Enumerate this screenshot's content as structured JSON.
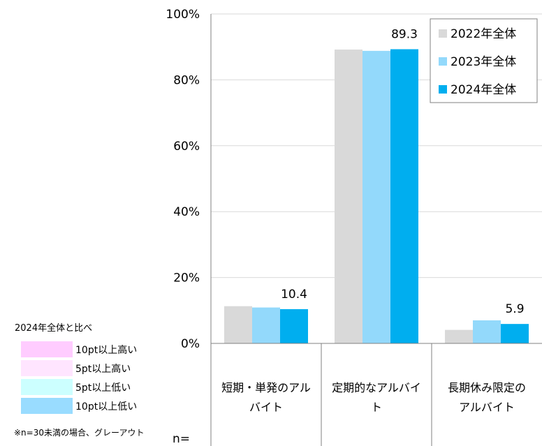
{
  "chart_data": {
    "type": "bar",
    "y_ticks": [
      "0%",
      "20%",
      "40%",
      "60%",
      "80%",
      "100%"
    ],
    "ylim": [
      0,
      100
    ],
    "categories": [
      [
        "短期・単発のアル",
        "バイト"
      ],
      [
        "定期的なアルバイ",
        "ト"
      ],
      [
        "長期休み限定の",
        "アルバイト"
      ]
    ],
    "series": [
      {
        "name": "2022年全体",
        "color": "#d9d9d9",
        "values": [
          11.3,
          89.2,
          4.1
        ]
      },
      {
        "name": "2023年全体",
        "color": "#93d9fb",
        "values": [
          10.9,
          88.8,
          7.0
        ]
      },
      {
        "name": "2024年全体",
        "color": "#00aeef",
        "values": [
          10.4,
          89.3,
          5.9
        ]
      }
    ],
    "data_labels": [
      "10.4",
      "89.3",
      "5.9"
    ],
    "grid": true,
    "legend_position": "top-right",
    "comparison_legend": {
      "title": "2024年全体と比べ",
      "items": [
        {
          "label": "10pt以上高い",
          "color": "#ffccff"
        },
        {
          "label": "5pt以上高い",
          "color": "#ffe5ff"
        },
        {
          "label": "5pt以上低い",
          "color": "#ccffff"
        },
        {
          "label": "10pt以上低い",
          "color": "#99dcff"
        }
      ]
    },
    "note": "※n=30未満の場合、グレーアウト",
    "n_label": "n="
  }
}
